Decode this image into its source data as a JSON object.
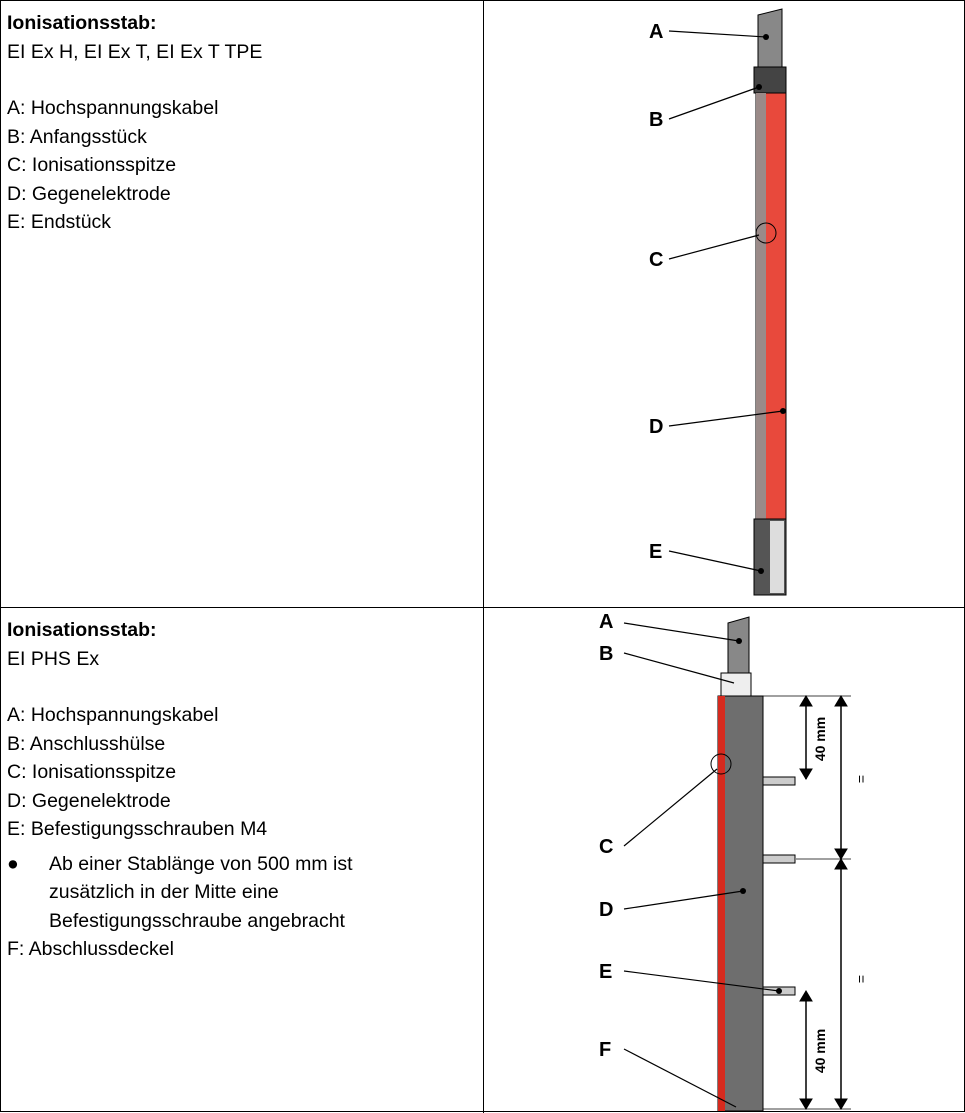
{
  "rows": [
    {
      "title": "Ionisationsstab:",
      "subtitle": "EI Ex H, EI Ex T, EI Ex T TPE",
      "items": [
        "A: Hochspannungskabel",
        "B: Anfangsstück",
        "C: Ionisationsspitze",
        "D: Gegenelektrode",
        "E: Endstück"
      ],
      "diagram_labels": [
        "A",
        "B",
        "C",
        "D",
        "E"
      ]
    },
    {
      "title": "Ionisationsstab:",
      "subtitle": "EI PHS Ex",
      "items": [
        "A: Hochspannungskabel",
        "B: Anschlusshülse",
        "C: Ionisationsspitze",
        "D: Gegenelektrode",
        "E: Befestigungsschrauben M4"
      ],
      "bullet": "Ab einer Stablänge von 500 mm ist zusätzlich in der Mitte eine Befestigungsschraube angebracht",
      "last_item": "F: Abschlussdeckel",
      "diagram_labels": [
        "A",
        "B",
        "C",
        "D",
        "E",
        "F"
      ],
      "dimensions": [
        "40 mm",
        "=",
        "=",
        "40 mm"
      ]
    }
  ]
}
